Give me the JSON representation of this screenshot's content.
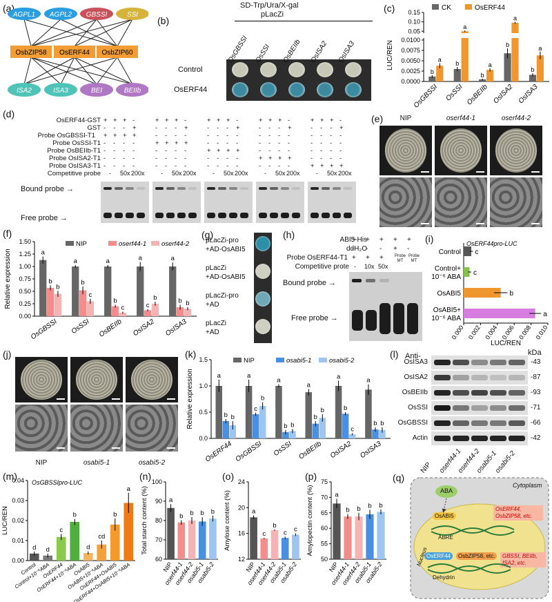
{
  "panels": {
    "a": {
      "label": "(a)",
      "top_genes": [
        "AGPL1",
        "AGPL2",
        "GBSSI",
        "SSI"
      ],
      "top_colors": [
        "#2a9ee0",
        "#2a9ee0",
        "#c8515a",
        "#d6b33a"
      ],
      "tfs": [
        "OsbZIP58",
        "OsERF44",
        "OsbZIP60"
      ],
      "tf_color": "#f39c34",
      "bottom_genes": [
        "ISA2",
        "ISA3",
        "BEI",
        "BEIIb"
      ],
      "bottom_colors": [
        "#4fc3b7",
        "#4fc3b7",
        "#b078c4",
        "#b078c4"
      ]
    },
    "b": {
      "label": "(b)",
      "medium": "SD-Trp/Ura/X-gal",
      "vector": "pLacZi",
      "columns": [
        "OsGBSSI",
        "OsSSI",
        "OsBEIIb",
        "OsISA2",
        "OsISA3"
      ],
      "rows": [
        "Control",
        "OsERF44"
      ]
    },
    "c": {
      "label": "(c)",
      "legend": [
        "CK",
        "OsERF44"
      ],
      "ylabel": "LUC/REN",
      "upper_ticks": [
        "0.15",
        "0.10",
        "0.05"
      ],
      "lower_ticks": [
        "0.0100",
        "0.0075",
        "0.0050",
        "0.0025",
        "0.0000"
      ]
    },
    "d": {
      "label": "(d)",
      "rows": [
        "OsERF44-GST",
        "GST",
        "Probe OsGBSSI-T1",
        "Probe OsSSI-T1",
        "Probe OsBEIIb-T1",
        "Probe OsISA2-T1",
        "Probe OsISA3-T1",
        "Competitive probe"
      ],
      "competitor": [
        "-",
        "50x",
        "200x"
      ],
      "bound": "Bound probe",
      "free": "Free probe"
    },
    "e": {
      "label": "(e)",
      "columns": [
        "NIP",
        "oserf44-1",
        "oserf44-2"
      ]
    },
    "f": {
      "label": "(f)",
      "legend": [
        "NIP",
        "oserf44-1",
        "oserf44-2"
      ],
      "ylabel": "Relative expression",
      "yticks": [
        "0.00",
        "0.25",
        "0.50",
        "0.75",
        "1.00",
        "1.25",
        "1.50"
      ]
    },
    "g": {
      "label": "(g)",
      "rows": [
        "pLacZi-pro\n+AD-OsABI5",
        "pLacZi\n+AD-OsABI5",
        "pLacZi-pro\n+AD",
        "pLacZi\n+AD"
      ]
    },
    "h": {
      "label": "(h)",
      "rows": [
        "ABI5-His",
        "ddH₂O",
        "Probe OsERF44-T1",
        "Competitive prote"
      ],
      "comp": [
        "10x",
        "50x"
      ],
      "mt": [
        "Probe MT",
        "Probe MT"
      ],
      "bound": "Bound probe",
      "free": "Free probe"
    },
    "i": {
      "label": "(i)",
      "title": "OsERF44pro-LUC",
      "xlabel": "LUC/REN",
      "xticks": [
        "0.000",
        "0.002",
        "0.004",
        "0.006",
        "0.008",
        "0.010"
      ]
    },
    "j": {
      "label": "(j)",
      "columns": [
        "NIP",
        "osabi5-1",
        "osabi5-2"
      ]
    },
    "k": {
      "label": "(k)",
      "legend": [
        "NIP",
        "osabi5-1",
        "osabi5-2"
      ],
      "ylabel": "Relative expression",
      "yticks": [
        "0.0",
        "0.5",
        "1.0",
        "1.5"
      ]
    },
    "l": {
      "label": "(l)",
      "header_left": "Anti-",
      "header_right": "kDa",
      "proteins": [
        "OsISA3",
        "OsISA2",
        "OsBEIIb",
        "OsSSI",
        "OsGBSSI",
        "Actin"
      ],
      "kda": [
        "43",
        "87",
        "93",
        "71",
        "66",
        "42"
      ],
      "lanes": [
        "NIP",
        "oserf44-1",
        "oserf44-2",
        "osabi5-1",
        "osabi5-2"
      ]
    },
    "m": {
      "label": "(m)",
      "title": "OsGBSSIpro-LUC",
      "ylabel": "LUC/REN",
      "yticks": [
        "0.00",
        "0.01",
        "0.02",
        "0.03",
        "0.04"
      ]
    },
    "n": {
      "label": "(n)",
      "ylabel": "Total starch content (%)",
      "yticks": [
        "60",
        "70",
        "80",
        "90",
        "100"
      ]
    },
    "o": {
      "label": "(o)",
      "ylabel": "Amylose content (%)",
      "yticks": [
        "12",
        "16",
        "20",
        "24"
      ]
    },
    "p": {
      "label": "(p)",
      "ylabel": "Amylopectin content (%)",
      "yticks": [
        "50",
        "55",
        "60",
        "65",
        "70",
        "75"
      ]
    },
    "q": {
      "label": "(q)",
      "cytoplasm": "Cytoplasm",
      "nucleus": "Nucleus",
      "aba": "ABA",
      "abi5": "OsABI5",
      "abre": "ABRE",
      "targets1": "OsERF44, OsbZIP58, etc.",
      "erf": "OsERF44",
      "bzip": "OsbZIP58, etc.",
      "dehydrin": "Dehydrin",
      "targets2": "GBSSI, BEIIb, ISA2, etc."
    }
  },
  "chart_data": [
    {
      "id": "c",
      "type": "bar",
      "ylabel": "LUC/REN",
      "categories": [
        "OsGBSSI",
        "OsSSI",
        "OsBEIIb",
        "OsISA2",
        "OsISA3"
      ],
      "series": [
        {
          "name": "CK",
          "values": [
            0.0012,
            0.003,
            0.0005,
            0.0068,
            0.0016
          ],
          "err": [
            0.0003,
            0.0005,
            0.0002,
            0.0012,
            0.0004
          ],
          "sig": [
            "b",
            "b",
            "b",
            "b",
            "b"
          ]
        },
        {
          "name": "OsERF44",
          "values": [
            0.0038,
            0.05,
            0.0028,
            0.095,
            0.0063
          ],
          "err": [
            0.0006,
            0.004,
            0.0004,
            0.005,
            0.0009
          ],
          "sig": [
            "a",
            "a",
            "a",
            "a",
            "a"
          ]
        }
      ]
    },
    {
      "id": "f",
      "type": "bar",
      "ylabel": "Relative expression",
      "ylim": [
        0,
        1.5
      ],
      "categories": [
        "OsGBSSI",
        "OsSSI",
        "OsBEIIb",
        "OsISA2",
        "OsISA3"
      ],
      "series": [
        {
          "name": "NIP",
          "values": [
            1.13,
            1.0,
            1.0,
            1.0,
            1.0
          ],
          "err": [
            0.07,
            0.03,
            0.03,
            0.09,
            0.08
          ],
          "sig": [
            "a",
            "a",
            "a",
            "a",
            "a"
          ]
        },
        {
          "name": "oserf44-1",
          "values": [
            0.57,
            0.52,
            0.2,
            0.12,
            0.18
          ],
          "err": [
            0.05,
            0.08,
            0.03,
            0.02,
            0.05
          ],
          "sig": [
            "b",
            "b",
            "b",
            "c",
            "b"
          ]
        },
        {
          "name": "oserf44-2",
          "values": [
            0.45,
            0.3,
            0.07,
            0.25,
            0.15
          ],
          "err": [
            0.06,
            0.05,
            0.02,
            0.04,
            0.03
          ],
          "sig": [
            "b",
            "c",
            "c",
            "b",
            "b"
          ]
        }
      ]
    },
    {
      "id": "i",
      "type": "bar",
      "title": "OsERF44pro-LUC",
      "xlabel": "LUC/REN",
      "xlim": [
        0,
        0.01
      ],
      "categories": [
        "Control",
        "Control+ 10⁻⁶ ABA",
        "OsABI5",
        "OsABI5+ 10⁻⁶ ABA"
      ],
      "values": [
        0.0009,
        0.0007,
        0.0044,
        0.0085
      ],
      "err": [
        0.0002,
        0.0002,
        0.0008,
        0.0007
      ],
      "sig": [
        "c",
        "c",
        "b",
        "a"
      ],
      "colors": [
        "#555555",
        "#86c24b",
        "#f0962e",
        "#d77de0"
      ]
    },
    {
      "id": "k",
      "type": "bar",
      "ylabel": "Relative expression",
      "ylim": [
        0,
        1.5
      ],
      "categories": [
        "OsERF44",
        "OsGBSSI",
        "OsSSI",
        "OsBEIIb",
        "OsISA2",
        "OsISA3"
      ],
      "series": [
        {
          "name": "NIP",
          "values": [
            1.0,
            1.0,
            1.0,
            0.88,
            1.0,
            0.93
          ],
          "err": [
            0.12,
            0.12,
            0.03,
            0.06,
            0.1,
            0.1
          ],
          "sig": [
            "a",
            "a",
            "a",
            "a",
            "a",
            "a"
          ]
        },
        {
          "name": "osabi5-1",
          "values": [
            0.33,
            0.46,
            0.12,
            0.28,
            0.47,
            0.17
          ],
          "err": [
            0.04,
            0.03,
            0.04,
            0.05,
            0.03,
            0.04
          ],
          "sig": [
            "b",
            "c",
            "b",
            "b",
            "b",
            "b"
          ]
        },
        {
          "name": "osabi5-2",
          "values": [
            0.25,
            0.62,
            0.14,
            0.39,
            0.08,
            0.16
          ],
          "err": [
            0.08,
            0.07,
            0.04,
            0.07,
            0.02,
            0.05
          ],
          "sig": [
            "b",
            "b",
            "b",
            "b",
            "c",
            "b"
          ]
        }
      ]
    },
    {
      "id": "m",
      "type": "bar",
      "title": "OsGBSSIpro-LUC",
      "ylabel": "LUC/REN",
      "ylim": [
        0,
        0.04
      ],
      "categories": [
        "Control",
        "Control+10⁻⁶ABA",
        "OsERF44",
        "OsERF44+10⁻⁶ABA",
        "OsABI5",
        "OsABI5+10⁻⁶ABA",
        "OsERF44+OsABI5",
        "OsERF44+OsABI5+10⁻⁶ABA"
      ],
      "values": [
        0.0035,
        0.0025,
        0.0118,
        0.0193,
        0.0038,
        0.008,
        0.018,
        0.0288
      ],
      "err": [
        0.001,
        0.001,
        0.0015,
        0.0015,
        0.0008,
        0.002,
        0.003,
        0.005
      ],
      "sig": [
        "d",
        "d",
        "c",
        "b",
        "d",
        "cd",
        "b",
        "a"
      ],
      "colors": [
        "#555555",
        "#7a7a7a",
        "#8cc84b",
        "#4fae3c",
        "#f3b55c",
        "#f3a23a",
        "#f59a2a",
        "#f07a16"
      ]
    },
    {
      "id": "n",
      "type": "bar",
      "ylabel": "Total starch content (%)",
      "ylim": [
        60,
        100
      ],
      "categories": [
        "NIP",
        "oserf44-1",
        "oserf44-2",
        "osabi5-1",
        "osabi5-2"
      ],
      "values": [
        86.5,
        79.0,
        80.0,
        79.5,
        81.0
      ],
      "err": [
        2.0,
        1.2,
        1.8,
        2.2,
        1.5
      ],
      "sig": [
        "a",
        "b",
        "b",
        "b",
        "b"
      ],
      "colors": [
        "#555555",
        "#f58c8c",
        "#f5b3b3",
        "#4a90e2",
        "#9cc5f0"
      ]
    },
    {
      "id": "o",
      "type": "bar",
      "ylabel": "Amylose content (%)",
      "ylim": [
        12,
        24
      ],
      "categories": [
        "NIP",
        "oserf44-1",
        "oserf44-2",
        "osabi5-1",
        "osabi5-2"
      ],
      "values": [
        18.5,
        15.2,
        16.5,
        15.3,
        15.8
      ],
      "err": [
        0.3,
        0.1,
        0.1,
        0.2,
        0.2
      ],
      "sig": [
        "a",
        "c",
        "b",
        "c",
        "c"
      ],
      "colors": [
        "#555555",
        "#f58c8c",
        "#f5b3b3",
        "#4a90e2",
        "#9cc5f0"
      ]
    },
    {
      "id": "p",
      "type": "bar",
      "ylabel": "Amylopectin content (%)",
      "ylim": [
        50,
        75
      ],
      "categories": [
        "NIP",
        "oserf44-1",
        "oserf44-2",
        "osabi5-1",
        "osabi5-2"
      ],
      "values": [
        68.0,
        63.8,
        63.8,
        64.5,
        65.3
      ],
      "err": [
        1.5,
        0.8,
        1.2,
        1.5,
        0.8
      ],
      "sig": [
        "a",
        "b",
        "b",
        "b",
        "b"
      ],
      "colors": [
        "#555555",
        "#f58c8c",
        "#f5b3b3",
        "#4a90e2",
        "#9cc5f0"
      ]
    }
  ]
}
